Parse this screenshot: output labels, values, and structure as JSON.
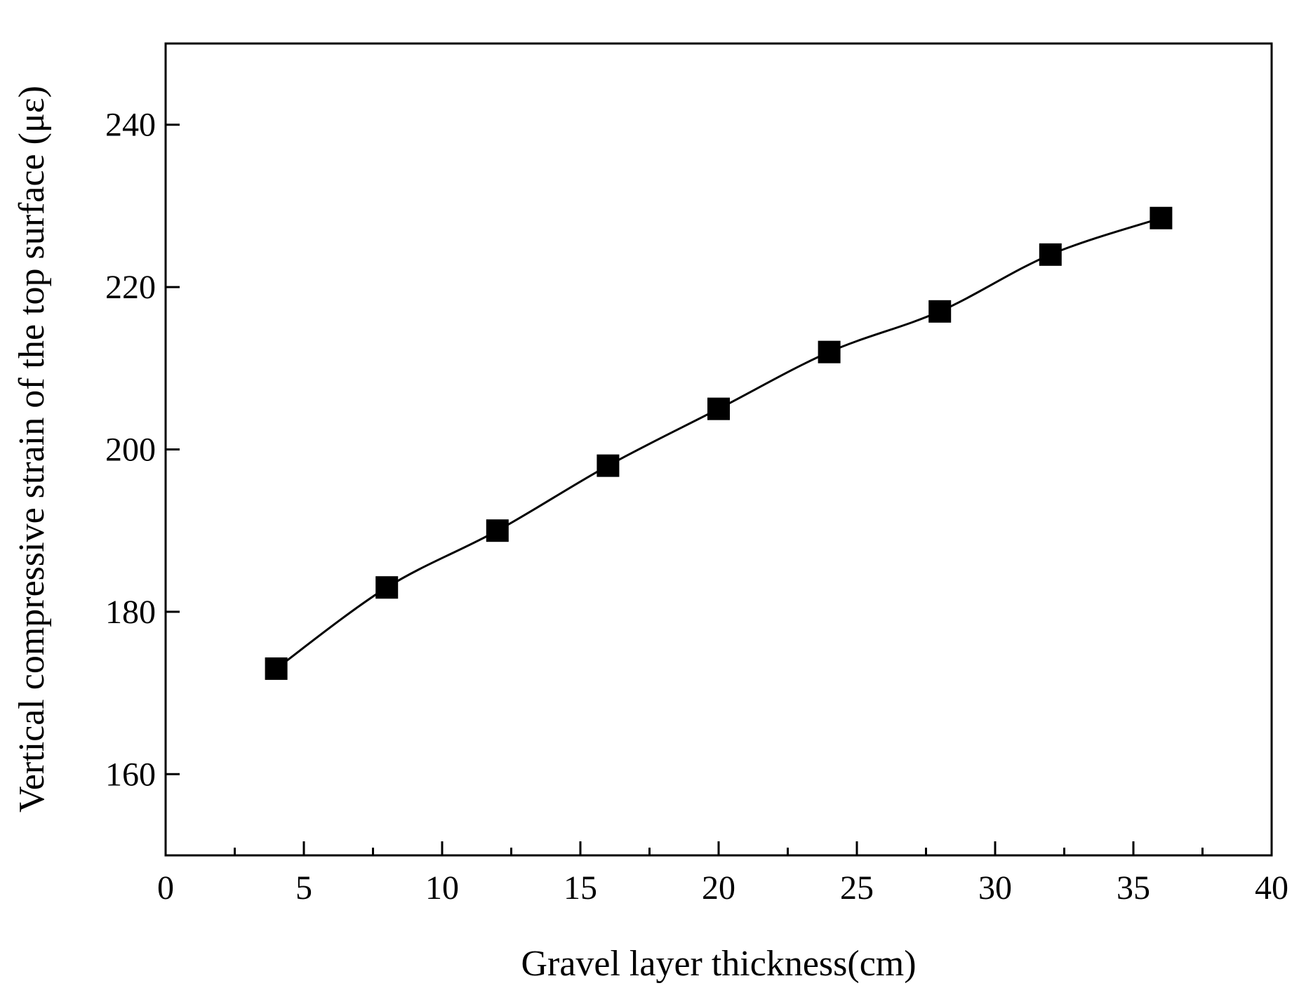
{
  "chart_data": {
    "type": "line",
    "xlabel": "Gravel layer thickness(cm)",
    "ylabel": "Vertical compressive strain of the top surface (με)",
    "xlim": [
      0,
      40
    ],
    "ylim": [
      150,
      250
    ],
    "xticks": [
      0,
      5,
      10,
      15,
      20,
      25,
      30,
      35,
      40
    ],
    "yticks": [
      160,
      180,
      200,
      220,
      240
    ],
    "grid": false,
    "marker": "square",
    "line_color": "#000000",
    "series": [
      {
        "x": [
          4,
          8,
          12,
          16,
          20,
          24,
          28,
          32,
          36
        ],
        "y": [
          173,
          183,
          190,
          198,
          205,
          212,
          217,
          224,
          228.5
        ]
      }
    ]
  }
}
